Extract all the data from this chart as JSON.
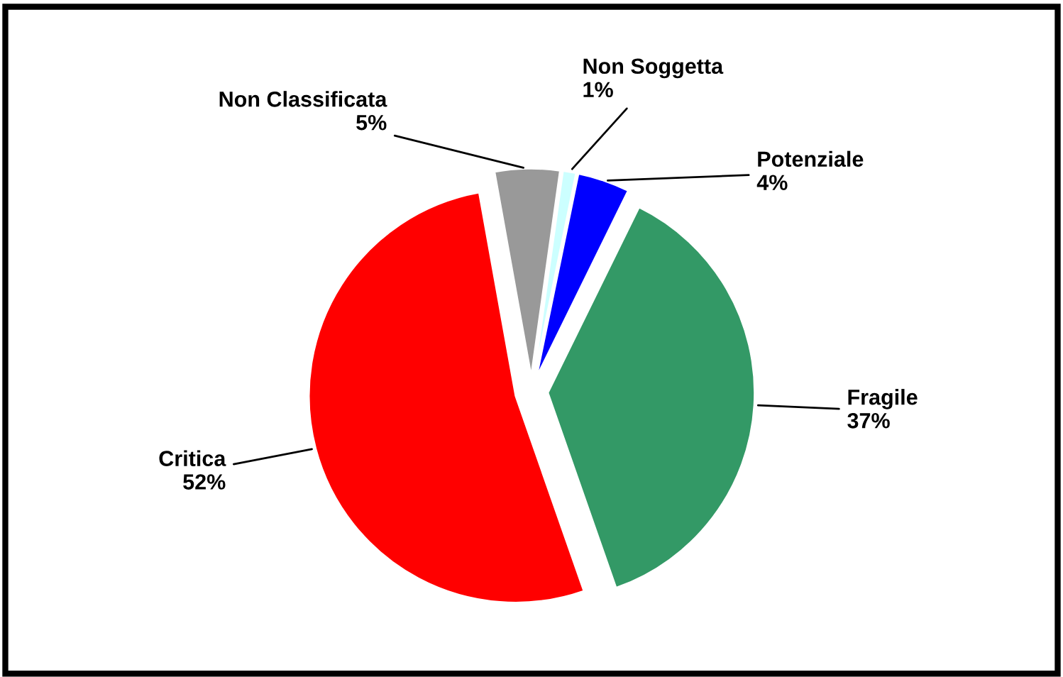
{
  "chart_data": {
    "type": "pie",
    "categories": [
      "Non Soggetta",
      "Potenziale",
      "Fragile",
      "Critica",
      "Non Classificata"
    ],
    "values": [
      1,
      4,
      37,
      52,
      5
    ],
    "colors": [
      "#ccffff",
      "#0000ff",
      "#339966",
      "#ff0000",
      "#999999"
    ],
    "value_labels": [
      "1%",
      "4%",
      "37%",
      "52%",
      "5%"
    ]
  }
}
